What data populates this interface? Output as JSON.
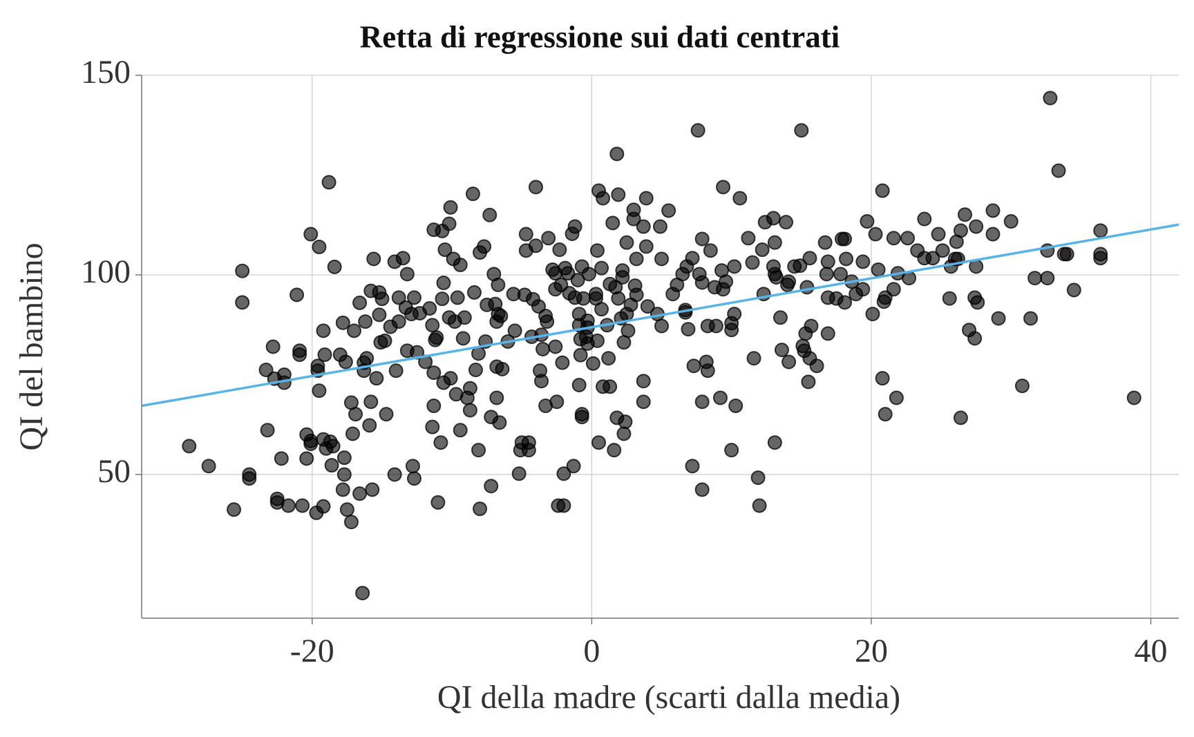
{
  "chart_data": {
    "type": "scatter",
    "title": "Retta di regressione sui dati centrati",
    "xlabel": "QI della madre (scarti dalla media)",
    "ylabel": "QI del bambino",
    "xlim": [
      -32.2,
      42
    ],
    "ylim": [
      14,
      150
    ],
    "xticks": [
      -20,
      0,
      20,
      40
    ],
    "yticks": [
      50,
      100,
      150
    ],
    "grid": true,
    "color": "#000000",
    "x": [
      -28.8,
      -27.4,
      -25.6,
      -25.0,
      -25.0,
      -24.5,
      -24.5,
      -23.3,
      -23.2,
      -22.8,
      -22.7,
      -22.5,
      -22.5,
      -22.2,
      -22,
      -22,
      -21.7,
      -21.1,
      -20.9,
      -20.9,
      -20.7,
      -20.4,
      -20.4,
      -20.1,
      -20.1,
      -20.1,
      -19.7,
      -19.6,
      -19.6,
      -19.5,
      -19.5,
      -19.2,
      -19.2,
      -19.1,
      -19,
      -19.2,
      -18.8,
      -18.7,
      -18.6,
      -18.5,
      -18.4,
      -18.0,
      -17.8,
      -17.7,
      -17.7,
      -17.8,
      -17.6,
      -17.5,
      -17.2,
      -17.2,
      -17.1,
      -17.0,
      -16.9,
      -16.6,
      -16.6,
      -16.4,
      -16.3,
      -16.3,
      -16.2,
      -16.1,
      -15.9,
      -15.8,
      -15.8,
      -15.7,
      -15.6,
      -15.4,
      -15.2,
      -15.2,
      -15.1,
      -15.0,
      -14.8,
      -14.7,
      -14.4,
      -14.1,
      -14.1,
      -14.0,
      -13.8,
      -13.8,
      -13.5,
      -13.3,
      -13.2,
      -13.2,
      -12.9,
      -12.8,
      -12.7,
      -12.7,
      -12.5,
      -12.3,
      -11.9,
      -11.6,
      -11.4,
      -11.3,
      -11.4,
      -11.3,
      -11.3,
      -11.1,
      -11.2,
      -11.0,
      -10.8,
      -10.7,
      -10.6,
      -10.7,
      -10.6,
      -10.5,
      -10.2,
      -10.2,
      -10.1,
      -10.1,
      -9.9,
      -9.8,
      -9.7,
      -9.6,
      -9.4,
      -9.4,
      -9.2,
      -9.1,
      -8.9,
      -8.7,
      -8.7,
      -8.5,
      -8.4,
      -8.3,
      -8.1,
      -8.1,
      -8.0,
      -8.0,
      -7.7,
      -7.6,
      -7.5,
      -7.3,
      -7.2,
      -7.2,
      -7.0,
      -6.8,
      -6.9,
      -6.8,
      -6.8,
      -6.7,
      -6.7,
      -6.6,
      -6.4,
      -6.5,
      -6.0,
      -5.6,
      -5.5,
      -5.2,
      -5.1,
      -5.0,
      -4.8,
      -4.7,
      -4.7,
      -4.5,
      -4.5,
      -4.3,
      -4.2,
      -4.0,
      -4.0,
      -3.8,
      -3.7,
      -3.6,
      -3.6,
      -3.5,
      -3.3,
      -3.3,
      -3.2,
      -3.1,
      -2.8,
      -2.6,
      -2.6,
      -2.6,
      -2.5,
      -2.4,
      -2.3,
      -2.2,
      -2.1,
      -2.0,
      -2.0,
      -1.9,
      -1.7,
      -1.6,
      -1.4,
      -1.2,
      -1.3,
      -1.2,
      -1.0,
      -0.9,
      -0.9,
      -0.9,
      -0.8,
      -0.8,
      -0.7,
      -0.7,
      -0.6,
      -0.7,
      -0.4,
      -0.3,
      -0.3,
      -0.3,
      -0.2,
      0.1,
      0.3,
      0.3,
      0.4,
      0.4,
      0.5,
      0.8,
      0.5,
      0.7,
      0.7,
      0.8,
      1.1,
      1.3,
      1.2,
      1.3,
      1.5,
      1.6,
      1.7,
      1.8,
      1.8,
      1.9,
      1.9,
      2.1,
      2.2,
      2.2,
      2.3,
      2.3,
      2.4,
      2.5,
      2.5,
      2.6,
      2.8,
      3.0,
      3.0,
      3.1,
      3.2,
      3.2,
      3.7,
      3.7,
      3.7,
      3.9,
      3.9,
      4.0,
      4.7,
      4.9,
      5.0,
      5.0,
      5.5,
      5.8,
      6.1,
      6.5,
      6.7,
      6.7,
      6.8,
      6.9,
      7.2,
      7.2,
      7.3,
      7.6,
      7.7,
      7.9,
      7.9,
      7.9,
      7.9,
      8.2,
      8.3,
      8.3,
      8.5,
      8.8,
      8.9,
      9.2,
      9.3,
      9.4,
      9.4,
      9.6,
      10.0,
      10.0,
      10.0,
      10.2,
      10.3,
      10.2,
      10.6,
      11.2,
      11.5,
      11.6,
      11.9,
      12.0,
      12.2,
      12.3,
      12.4,
      13.0,
      13.1,
      13.0,
      13.1,
      13.1,
      13.2,
      13.5,
      13.6,
      13.9,
      14.0,
      14.1,
      14.1,
      14.5,
      14.9,
      15.0,
      15.1,
      15.2,
      15.3,
      15.4,
      15.5,
      15.6,
      15.6,
      15.7,
      16.1,
      16.7,
      16.8,
      16.9,
      16.9,
      16.9,
      17.5,
      17.8,
      17.9,
      18.1,
      18.2,
      18.1,
      18.6,
      18.9,
      19.4,
      19.4,
      19.7,
      20.1,
      20.3,
      20.5,
      20.8,
      20.8,
      20.9,
      21.0,
      21.0,
      21.6,
      21.6,
      21.8,
      21.9,
      22.6,
      22.7,
      23.3,
      23.8,
      23.8,
      24.4,
      24.8,
      25.1,
      25.6,
      25.7,
      26.0,
      26.2,
      26.1,
      26.4,
      26.4,
      26.7,
      27.0,
      27.4,
      27.6,
      27.4,
      27.5,
      27.5,
      28.7,
      28.7,
      29.1,
      30.0,
      30.8,
      31.4,
      31.7,
      32.6,
      32.6,
      32.8,
      33.4,
      33.8,
      34.0,
      34.5,
      36.4,
      36.4,
      36.4,
      38.8
    ],
    "values": [
      57.1,
      52.1,
      41.2,
      101,
      93.1,
      50,
      49,
      76.2,
      61.1,
      82,
      74,
      43.9,
      43,
      54,
      75,
      73,
      42.2,
      95,
      81,
      80,
      42.2,
      54,
      60,
      57.7,
      58.4,
      110.2,
      40.4,
      76,
      77.2,
      107,
      71,
      86,
      42,
      80,
      56.5,
      58.8,
      123.2,
      58.2,
      52.3,
      57.1,
      102,
      80,
      88,
      54.2,
      50,
      46.2,
      78.2,
      41.2,
      38.1,
      68,
      60.2,
      86,
      65.1,
      93,
      45.2,
      20.3,
      78,
      76,
      88.3,
      79.1,
      62.3,
      96,
      68.2,
      46.2,
      104,
      74.1,
      90,
      95.6,
      83.1,
      94,
      83.5,
      65.1,
      87,
      103.3,
      50,
      76,
      88.3,
      94.3,
      104.2,
      91.8,
      81,
      100.2,
      90.2,
      52.1,
      49,
      94.3,
      80.6,
      90.4,
      78.2,
      91.6,
      87.4,
      67.2,
      61.9,
      75.5,
      111.3,
      84.3,
      83.7,
      43,
      58,
      111,
      73,
      94,
      98,
      106.3,
      89.3,
      112.8,
      116.9,
      74.1,
      104,
      88.3,
      70.1,
      94.3,
      61.1,
      102.5,
      84.1,
      89.3,
      69.2,
      66.1,
      71.6,
      120.3,
      95.6,
      76.2,
      80.3,
      56.1,
      105.6,
      41.4,
      107.1,
      83.3,
      92.5,
      115,
      47.1,
      64.4,
      100.2,
      88.3,
      92.7,
      77,
      69.2,
      90.2,
      97.5,
      63,
      76.4,
      89.7,
      83.3,
      95.2,
      86,
      50.2,
      56.1,
      58,
      95,
      110.2,
      106.1,
      58,
      56.1,
      84.5,
      93.9,
      122,
      107.3,
      92.1,
      76,
      73.4,
      85,
      81.4,
      67.2,
      89.7,
      88.3,
      109.2,
      101.3,
      100.4,
      96.4,
      82,
      68.2,
      42.2,
      106.3,
      97.5,
      78,
      50.2,
      42.2,
      101.7,
      100.4,
      95.4,
      110.3,
      94.3,
      52.1,
      112.1,
      98.7,
      87.4,
      90.2,
      72.4,
      79.9,
      83.9,
      65.1,
      64.4,
      94.1,
      102.1,
      84.5,
      82.8,
      88.5,
      86.8,
      100.2,
      77.8,
      95.2,
      94.1,
      83.5,
      106.1,
      121.1,
      119.2,
      58,
      101.7,
      91.4,
      72,
      87.4,
      72,
      79.1,
      97.7,
      113,
      56.1,
      96.9,
      64.2,
      130.3,
      120.1,
      94.1,
      89.1,
      101.1,
      99.4,
      60.2,
      83.1,
      63.2,
      108.1,
      90.2,
      86,
      92.5,
      116.3,
      114,
      97.3,
      104,
      95,
      73.4,
      68.2,
      112.1,
      107.1,
      119.2,
      92.1,
      90.2,
      112.1,
      104,
      87.2,
      116.1,
      95.2,
      97.5,
      100.2,
      91.2,
      90.6,
      102.1,
      86.4,
      104.2,
      52.1,
      77.2,
      136.2,
      100.2,
      98.1,
      109,
      68.2,
      46.2,
      78.2,
      76,
      87.2,
      106.1,
      96.9,
      87.2,
      69.2,
      101.1,
      122,
      96.4,
      98.3,
      86.2,
      87.9,
      56.1,
      90.2,
      67.2,
      102.1,
      119.2,
      109.2,
      103.1,
      79.1,
      49.2,
      42.2,
      106.3,
      95.2,
      113.2,
      114.2,
      108.1,
      102.1,
      58,
      100.2,
      99.4,
      89.3,
      81.2,
      113.2,
      97.5,
      98.3,
      78.2,
      102.1,
      102.3,
      136.2,
      82.2,
      81,
      85.3,
      96.9,
      73.2,
      104.2,
      79.1,
      87.2,
      77.2,
      108.1,
      100.2,
      103.3,
      94.3,
      85.3,
      94.1,
      100.2,
      109,
      109,
      104,
      93.1,
      98.3,
      95.2,
      103.3,
      96.4,
      113.4,
      90.2,
      110.2,
      101.3,
      121.1,
      74.1,
      93.3,
      94.3,
      65.1,
      96.4,
      109.2,
      69.2,
      100.4,
      109.2,
      99.2,
      106.1,
      114,
      104.2,
      104.2,
      110.2,
      106.1,
      94.1,
      102.1,
      104,
      104,
      108.3,
      111.1,
      64.2,
      115.1,
      86.2,
      94.3,
      93.1,
      84.1,
      112.1,
      102.1,
      116.1,
      110.2,
      89.1,
      113.4,
      72.2,
      89.1,
      99.2,
      106.1,
      99.2,
      144.3,
      126.1,
      105.2,
      105.2,
      96.2,
      111.1,
      105.2,
      104.2,
      69.2
    ],
    "regression_line": {
      "x": [
        -32.2,
        42
      ],
      "values": [
        67.2,
        112.6
      ],
      "color": "#56b4e9"
    }
  }
}
